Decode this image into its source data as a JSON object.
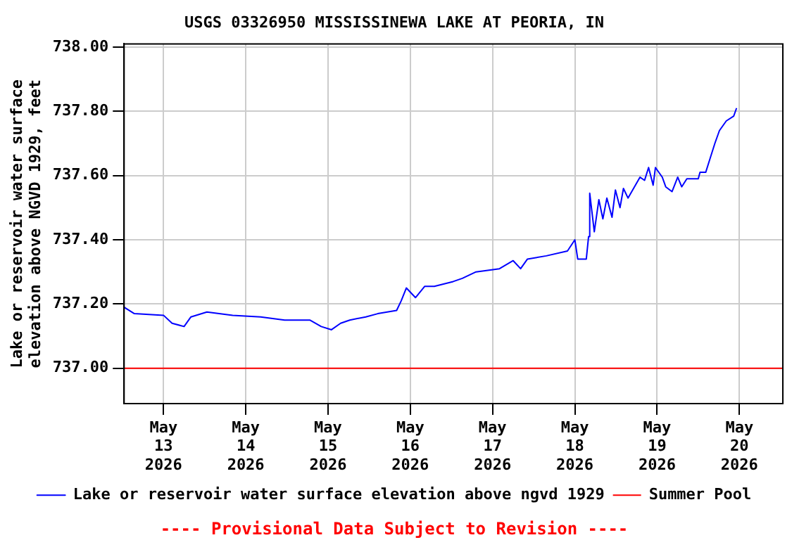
{
  "chart_data": {
    "type": "line",
    "title": "USGS 03326950 MISSISSINEWA LAKE AT PEORIA, IN",
    "ylabel": "Lake or reservoir water surface elevation above NGVD 1929, feet",
    "annotations": [
      "---- Provisional Data Subject to Revision ----"
    ],
    "xlim": [
      "2026-05-12T12:30",
      "2026-05-20T12:40"
    ],
    "xticks": [
      {
        "value": "2026-05-13",
        "label": "May\n13\n2026"
      },
      {
        "value": "2026-05-14",
        "label": "May\n14\n2026"
      },
      {
        "value": "2026-05-15",
        "label": "May\n15\n2026"
      },
      {
        "value": "2026-05-16",
        "label": "May\n16\n2026"
      },
      {
        "value": "2026-05-17",
        "label": "May\n17\n2026"
      },
      {
        "value": "2026-05-18",
        "label": "May\n18\n2026"
      },
      {
        "value": "2026-05-19",
        "label": "May\n19\n2026"
      },
      {
        "value": "2026-05-20",
        "label": "May\n20\n2026"
      }
    ],
    "ylim": [
      736.89,
      738.01
    ],
    "yticks": [
      {
        "value": 737,
        "label": "737.00"
      },
      {
        "value": 737.2,
        "label": "737.20"
      },
      {
        "value": 737.4,
        "label": "737.40"
      },
      {
        "value": 737.6,
        "label": "737.60"
      },
      {
        "value": 737.8,
        "label": "737.80"
      },
      {
        "value": 738,
        "label": "738.00"
      }
    ],
    "grid": true,
    "legend": "bottom",
    "marker": "none",
    "line_style": "solid",
    "series": [
      {
        "name": "Lake or reservoir water surface elevation above ngvd 1929",
        "color": "#0000ff",
        "x": [
          "2026-05-12T12:30",
          "2026-05-12T15:30",
          "2026-05-13T00:00",
          "2026-05-13T02:30",
          "2026-05-13T06:00",
          "2026-05-13T08:00",
          "2026-05-13T12:40",
          "2026-05-13T20:10",
          "2026-05-14T04:20",
          "2026-05-14T11:20",
          "2026-05-14T18:40",
          "2026-05-14T22:00",
          "2026-05-15T01:00",
          "2026-05-15T03:40",
          "2026-05-15T06:20",
          "2026-05-15T11:00",
          "2026-05-15T14:30",
          "2026-05-15T20:00",
          "2026-05-15T21:20",
          "2026-05-15T22:50",
          "2026-05-16T01:30",
          "2026-05-16T04:10",
          "2026-05-16T07:00",
          "2026-05-16T12:30",
          "2026-05-16T15:10",
          "2026-05-16T19:10",
          "2026-05-17T02:00",
          "2026-05-17T06:00",
          "2026-05-17T08:10",
          "2026-05-17T10:10",
          "2026-05-17T15:40",
          "2026-05-17T21:50",
          "2026-05-18T00:00",
          "2026-05-18T00:50",
          "2026-05-18T03:20",
          "2026-05-18T04:00",
          "2026-05-18T04:20",
          "2026-05-18T05:40",
          "2026-05-18T07:00",
          "2026-05-18T08:10",
          "2026-05-18T09:20",
          "2026-05-18T10:50",
          "2026-05-18T11:50",
          "2026-05-18T13:10",
          "2026-05-18T14:10",
          "2026-05-18T15:30",
          "2026-05-18T19:00",
          "2026-05-18T20:20",
          "2026-05-18T21:30",
          "2026-05-18T22:50",
          "2026-05-18T23:30",
          "2026-05-19T01:30",
          "2026-05-19T02:30",
          "2026-05-19T04:20",
          "2026-05-19T06:00",
          "2026-05-19T07:10",
          "2026-05-19T08:40",
          "2026-05-19T12:00",
          "2026-05-19T12:30",
          "2026-05-19T14:10",
          "2026-05-19T15:30",
          "2026-05-19T16:50",
          "2026-05-19T18:10",
          "2026-05-19T20:10",
          "2026-05-19T22:20",
          "2026-05-19T23:10"
        ],
        "values": [
          737.19,
          737.17,
          737.165,
          737.14,
          737.13,
          737.16,
          737.175,
          737.165,
          737.16,
          737.15,
          737.15,
          737.13,
          737.12,
          737.14,
          737.15,
          737.16,
          737.17,
          737.18,
          737.21,
          737.25,
          737.22,
          737.255,
          737.255,
          737.27,
          737.28,
          737.3,
          737.31,
          737.335,
          737.31,
          737.34,
          737.35,
          737.365,
          737.4,
          737.34,
          737.34,
          737.41,
          737.545,
          737.425,
          737.525,
          737.465,
          737.53,
          737.47,
          737.555,
          737.5,
          737.56,
          737.53,
          737.595,
          737.585,
          737.625,
          737.57,
          737.625,
          737.595,
          737.565,
          737.55,
          737.595,
          737.565,
          737.59,
          737.59,
          737.61,
          737.61,
          737.655,
          737.7,
          737.74,
          737.77,
          737.785,
          737.81
        ]
      }
    ],
    "ref_lines": [
      {
        "axis": "y",
        "value": 737,
        "label": "Summer Pool",
        "color": "#ff0000"
      }
    ]
  }
}
